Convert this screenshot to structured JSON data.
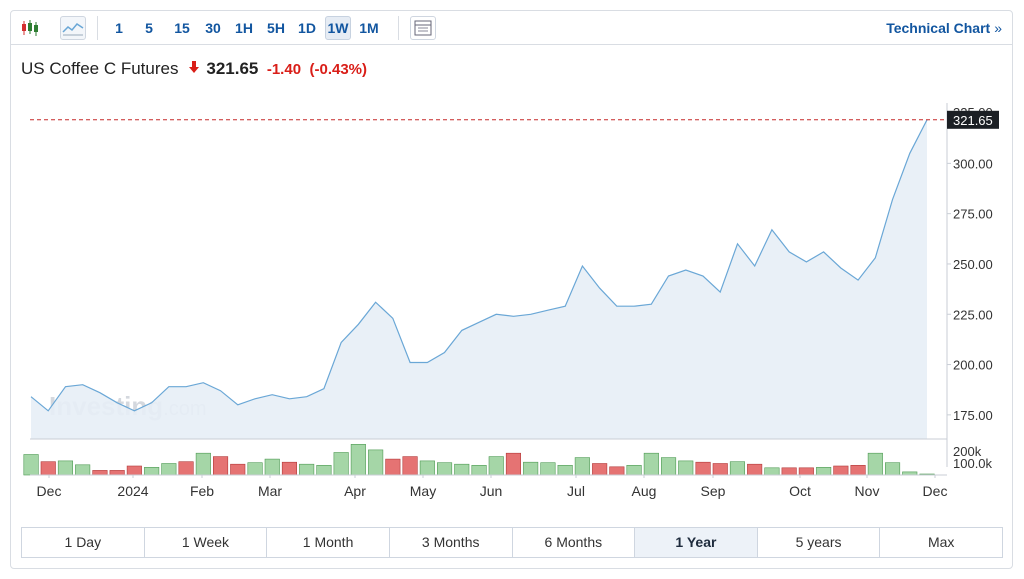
{
  "toolbar": {
    "chart_type_icons": [
      "candlestick-icon",
      "line-chart-icon"
    ],
    "timeframes": [
      "1",
      "5",
      "15",
      "30",
      "1H",
      "5H",
      "1D",
      "1W",
      "1M"
    ],
    "active_timeframe": "1W",
    "table_icon": "table-icon",
    "technical_chart_label": "Technical Chart",
    "technical_chart_chevron": "»"
  },
  "header": {
    "instrument": "US Coffee C Futures",
    "direction_icon": "down-arrow-icon",
    "price": "321.65",
    "change": "-1.40",
    "change_percent": "(-0.43%)"
  },
  "colors": {
    "accent": "#1256a0",
    "down": "#d91e18",
    "line": "#6aa7d6",
    "area": "#e7eef6",
    "volume_up": "#a5d6a7",
    "volume_down": "#e57373",
    "last_price_line": "#c62828"
  },
  "watermark": {
    "brand": "Investing",
    "suffix": ".com"
  },
  "chart_data": {
    "type": "area",
    "ylim": [
      163,
      330
    ],
    "y_ticks": [
      "175.00",
      "200.00",
      "225.00",
      "250.00",
      "275.00",
      "300.00"
    ],
    "y_top_partial_label": "325.00",
    "last_price_label": "321.65",
    "last_price": 321.65,
    "x_labels": [
      "Dec",
      "2024",
      "Feb",
      "Mar",
      "Apr",
      "May",
      "Jun",
      "Jul",
      "Aug",
      "Sep",
      "Oct",
      "Nov",
      "Dec"
    ],
    "grid": false,
    "values": [
      184,
      177,
      189,
      190,
      186,
      181,
      177,
      181,
      189,
      189,
      191,
      187,
      180,
      183,
      185,
      183,
      184,
      188,
      211,
      220,
      231,
      223,
      201,
      201,
      206,
      217,
      221,
      225,
      224,
      225,
      227,
      229,
      249,
      238,
      229,
      229,
      230,
      244,
      247,
      244,
      236,
      260,
      249,
      267,
      256,
      251,
      256,
      248,
      242,
      253,
      282,
      305,
      321.65
    ],
    "volume": {
      "axis_labels": [
        "200k",
        "100.0k"
      ],
      "bars": [
        {
          "v": 0.8,
          "d": "up"
        },
        {
          "v": 0.52,
          "d": "down"
        },
        {
          "v": 0.55,
          "d": "up"
        },
        {
          "v": 0.4,
          "d": "up"
        },
        {
          "v": 0.18,
          "d": "down"
        },
        {
          "v": 0.18,
          "d": "down"
        },
        {
          "v": 0.35,
          "d": "down"
        },
        {
          "v": 0.3,
          "d": "up"
        },
        {
          "v": 0.45,
          "d": "up"
        },
        {
          "v": 0.52,
          "d": "down"
        },
        {
          "v": 0.85,
          "d": "up"
        },
        {
          "v": 0.72,
          "d": "down"
        },
        {
          "v": 0.42,
          "d": "down"
        },
        {
          "v": 0.48,
          "d": "up"
        },
        {
          "v": 0.62,
          "d": "up"
        },
        {
          "v": 0.5,
          "d": "down"
        },
        {
          "v": 0.42,
          "d": "up"
        },
        {
          "v": 0.38,
          "d": "up"
        },
        {
          "v": 0.88,
          "d": "up"
        },
        {
          "v": 1.2,
          "d": "up"
        },
        {
          "v": 0.98,
          "d": "up"
        },
        {
          "v": 0.62,
          "d": "down"
        },
        {
          "v": 0.72,
          "d": "down"
        },
        {
          "v": 0.55,
          "d": "up"
        },
        {
          "v": 0.48,
          "d": "up"
        },
        {
          "v": 0.42,
          "d": "up"
        },
        {
          "v": 0.38,
          "d": "up"
        },
        {
          "v": 0.72,
          "d": "up"
        },
        {
          "v": 0.85,
          "d": "down"
        },
        {
          "v": 0.5,
          "d": "up"
        },
        {
          "v": 0.48,
          "d": "up"
        },
        {
          "v": 0.38,
          "d": "up"
        },
        {
          "v": 0.68,
          "d": "up"
        },
        {
          "v": 0.45,
          "d": "down"
        },
        {
          "v": 0.32,
          "d": "down"
        },
        {
          "v": 0.38,
          "d": "up"
        },
        {
          "v": 0.85,
          "d": "up"
        },
        {
          "v": 0.68,
          "d": "up"
        },
        {
          "v": 0.55,
          "d": "up"
        },
        {
          "v": 0.5,
          "d": "down"
        },
        {
          "v": 0.45,
          "d": "down"
        },
        {
          "v": 0.52,
          "d": "up"
        },
        {
          "v": 0.42,
          "d": "down"
        },
        {
          "v": 0.28,
          "d": "up"
        },
        {
          "v": 0.28,
          "d": "down"
        },
        {
          "v": 0.28,
          "d": "down"
        },
        {
          "v": 0.3,
          "d": "up"
        },
        {
          "v": 0.35,
          "d": "down"
        },
        {
          "v": 0.38,
          "d": "down"
        },
        {
          "v": 0.85,
          "d": "up"
        },
        {
          "v": 0.48,
          "d": "up"
        },
        {
          "v": 0.12,
          "d": "up"
        },
        {
          "v": 0.02,
          "d": "up"
        }
      ]
    }
  },
  "range_buttons": [
    "1 Day",
    "1 Week",
    "1 Month",
    "3 Months",
    "6 Months",
    "1 Year",
    "5 years",
    "Max"
  ],
  "active_range": "1 Year"
}
